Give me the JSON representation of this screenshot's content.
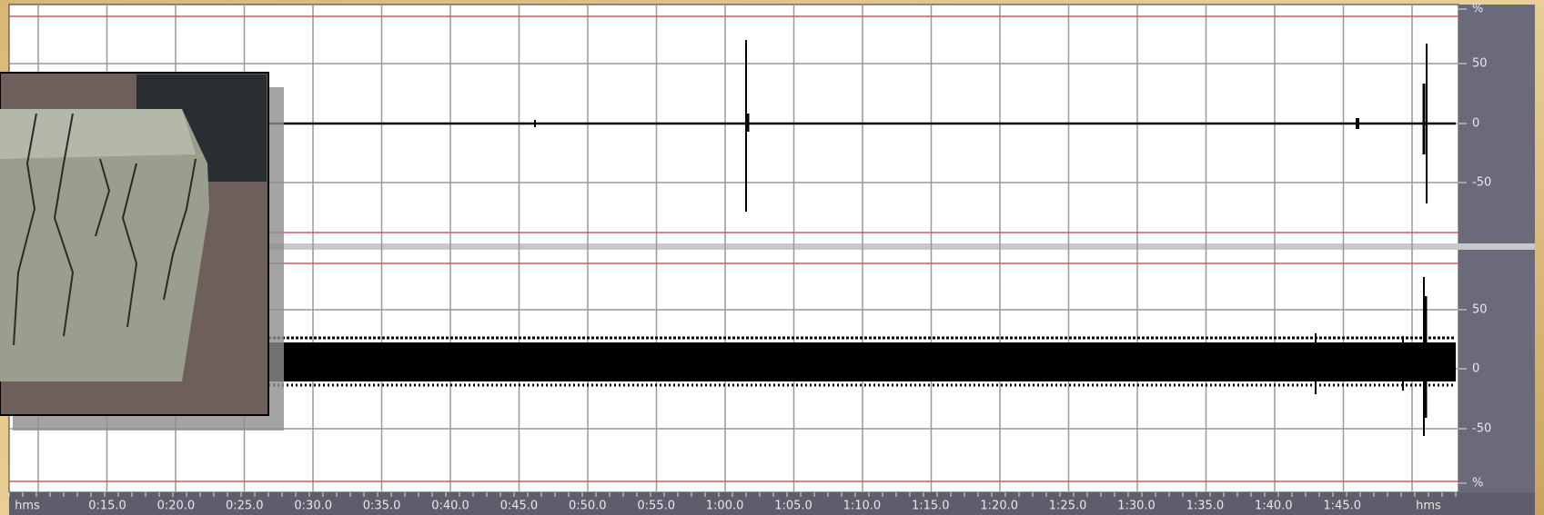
{
  "ruler": {
    "time_labels": [
      "hms",
      "0:15.0",
      "0:20.0",
      "0:25.0",
      "0:30.0",
      "0:35.0",
      "0:40.0",
      "0:45.0",
      "0:50.0",
      "0:55.0",
      "1:00.0",
      "1:05.0",
      "1:10.0",
      "1:15.0",
      "1:20.0",
      "1:25.0",
      "1:30.0",
      "1:35.0",
      "1:40.0",
      "1:45.0",
      "hms"
    ]
  },
  "channels": [
    {
      "amplitude_labels": [
        "%",
        "50",
        "0",
        "-50"
      ]
    },
    {
      "amplitude_labels": [
        "50",
        "0",
        "-50",
        "%"
      ]
    }
  ]
}
